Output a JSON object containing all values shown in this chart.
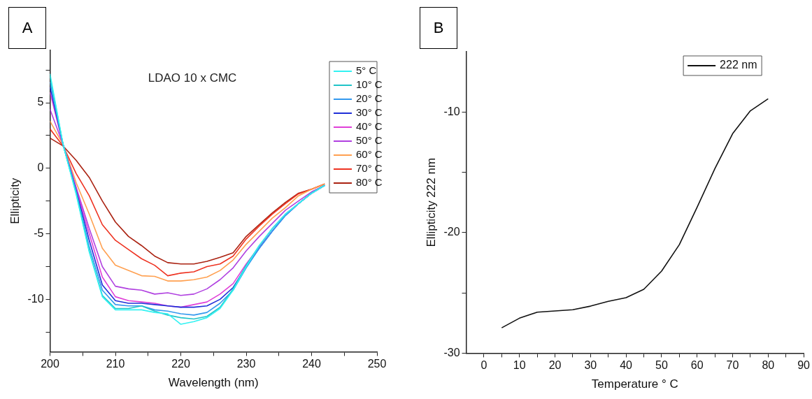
{
  "chart_data": [
    {
      "type": "line",
      "title": "A",
      "xlabel": "Wavelength (nm)",
      "ylabel": "Ellipticity",
      "annotations": [
        "LDAO 10 x CMC"
      ],
      "x": [
        200,
        202,
        204,
        206,
        208,
        210,
        212,
        214,
        216,
        218,
        220,
        222,
        224,
        226,
        228,
        230,
        232,
        234,
        236,
        238,
        240,
        242
      ],
      "series": [
        {
          "name": "5° C",
          "color": "#33f2f2",
          "values": [
            7.2,
            1.8,
            -2.0,
            -6.4,
            -9.8,
            -10.8,
            -10.8,
            -10.8,
            -11.0,
            -11.1,
            -11.9,
            -11.7,
            -11.4,
            -10.7,
            -9.3,
            -7.5,
            -5.9,
            -4.6,
            -3.5,
            -2.7,
            -1.9,
            -1.3
          ]
        },
        {
          "name": "10° C",
          "color": "#20c4c8",
          "values": [
            7.0,
            1.8,
            -1.9,
            -6.3,
            -9.7,
            -10.7,
            -10.7,
            -10.5,
            -10.9,
            -11.2,
            -11.4,
            -11.5,
            -11.3,
            -10.6,
            -9.2,
            -7.4,
            -5.9,
            -4.6,
            -3.5,
            -2.7,
            -1.9,
            -1.3
          ]
        },
        {
          "name": "20° C",
          "color": "#3399ee",
          "values": [
            6.6,
            1.8,
            -1.8,
            -6.0,
            -9.3,
            -10.4,
            -10.5,
            -10.5,
            -10.8,
            -10.9,
            -11.1,
            -11.2,
            -11.0,
            -10.3,
            -9.3,
            -7.6,
            -6.1,
            -4.8,
            -3.6,
            -2.7,
            -1.9,
            -1.3
          ]
        },
        {
          "name": "30° C",
          "color": "#1f2fd8",
          "values": [
            6.2,
            1.8,
            -1.7,
            -5.5,
            -8.9,
            -10.1,
            -10.3,
            -10.3,
            -10.4,
            -10.5,
            -10.6,
            -10.6,
            -10.5,
            -10.0,
            -9.1,
            -7.5,
            -6.1,
            -4.8,
            -3.6,
            -2.7,
            -1.9,
            -1.3
          ]
        },
        {
          "name": "40° C",
          "color": "#e040d8",
          "values": [
            5.8,
            1.8,
            -1.6,
            -5.0,
            -8.3,
            -9.8,
            -10.1,
            -10.2,
            -10.3,
            -10.5,
            -10.6,
            -10.4,
            -10.2,
            -9.6,
            -8.8,
            -7.3,
            -6.0,
            -4.6,
            -3.5,
            -2.7,
            -1.9,
            -1.3
          ]
        },
        {
          "name": "50° C",
          "color": "#b040e0",
          "values": [
            4.5,
            1.8,
            -1.45,
            -4.6,
            -7.5,
            -9.0,
            -9.2,
            -9.3,
            -9.6,
            -9.5,
            -9.7,
            -9.6,
            -9.2,
            -8.5,
            -7.6,
            -6.3,
            -5.2,
            -4.2,
            -3.2,
            -2.5,
            -1.8,
            -1.3
          ]
        },
        {
          "name": "60° C",
          "color": "#ffa050",
          "values": [
            3.6,
            1.8,
            -1.1,
            -3.5,
            -6.1,
            -7.4,
            -7.8,
            -8.2,
            -8.25,
            -8.6,
            -8.6,
            -8.5,
            -8.3,
            -7.8,
            -7.0,
            -5.8,
            -4.8,
            -3.8,
            -3.0,
            -2.1,
            -1.6,
            -1.2
          ]
        },
        {
          "name": "70° C",
          "color": "#ee3322",
          "values": [
            3.0,
            1.7,
            -0.4,
            -2.1,
            -4.3,
            -5.5,
            -6.2,
            -6.9,
            -7.4,
            -8.2,
            -8.0,
            -7.9,
            -7.5,
            -7.3,
            -6.7,
            -5.4,
            -4.4,
            -3.5,
            -2.7,
            -1.95,
            -1.6,
            -1.2
          ]
        },
        {
          "name": "80° C",
          "color": "#aa2211",
          "values": [
            2.3,
            1.7,
            0.6,
            -0.7,
            -2.5,
            -4.1,
            -5.2,
            -5.9,
            -6.7,
            -7.2,
            -7.3,
            -7.3,
            -7.1,
            -6.8,
            -6.45,
            -5.2,
            -4.3,
            -3.4,
            -2.6,
            -1.9,
            -1.6,
            -1.2
          ]
        }
      ],
      "xlim": [
        200,
        250
      ],
      "xticks": [
        200,
        {
          "value": 205,
          "label": null
        },
        210,
        {
          "value": 215,
          "label": null
        },
        220,
        {
          "value": 225,
          "label": null
        },
        230,
        {
          "value": 235,
          "label": null
        },
        240,
        {
          "value": 245,
          "label": null
        },
        250
      ],
      "ylim": [
        -14,
        9
      ],
      "yticks": [
        {
          "value": -12.5,
          "label": null
        },
        -10,
        {
          "value": -7.5,
          "label": null
        },
        -5,
        {
          "value": -2.5,
          "label": null
        },
        0,
        {
          "value": 2.5,
          "label": null
        },
        5,
        {
          "value": 7.5,
          "label": null
        }
      ],
      "grid": false,
      "legend": "top right",
      "marker": "none",
      "line_style": "solid"
    },
    {
      "type": "line",
      "title": "B",
      "xlabel": "Temperature ° C",
      "ylabel": "Ellipticity 222 nm",
      "x": [
        5,
        10,
        15,
        20,
        25,
        30,
        35,
        40,
        45,
        50,
        55,
        60,
        65,
        70,
        75,
        80
      ],
      "series": [
        {
          "name": "222 nm",
          "color": "#111111",
          "values": [
            -27.9,
            -27.1,
            -26.6,
            -26.5,
            -26.4,
            -26.1,
            -25.7,
            -25.4,
            -24.7,
            -23.2,
            -21.0,
            -17.9,
            -14.7,
            -11.8,
            -9.9,
            -8.9
          ]
        }
      ],
      "xlim": [
        -5,
        90
      ],
      "xticks": [
        0,
        {
          "value": 5,
          "label": null
        },
        10,
        {
          "value": 15,
          "label": null
        },
        20,
        {
          "value": 25,
          "label": null
        },
        30,
        {
          "value": 35,
          "label": null
        },
        40,
        {
          "value": 45,
          "label": null
        },
        50,
        {
          "value": 55,
          "label": null
        },
        60,
        {
          "value": 65,
          "label": null
        },
        70,
        {
          "value": 75,
          "label": null
        },
        80,
        {
          "value": 85,
          "label": null
        },
        90
      ],
      "ylim": [
        -30,
        -5
      ],
      "yticks": [
        -30,
        {
          "value": -25,
          "label": null
        },
        -20,
        {
          "value": -15,
          "label": null
        },
        -10
      ],
      "grid": false,
      "legend": "top right",
      "marker": "none",
      "line_style": "solid"
    }
  ]
}
